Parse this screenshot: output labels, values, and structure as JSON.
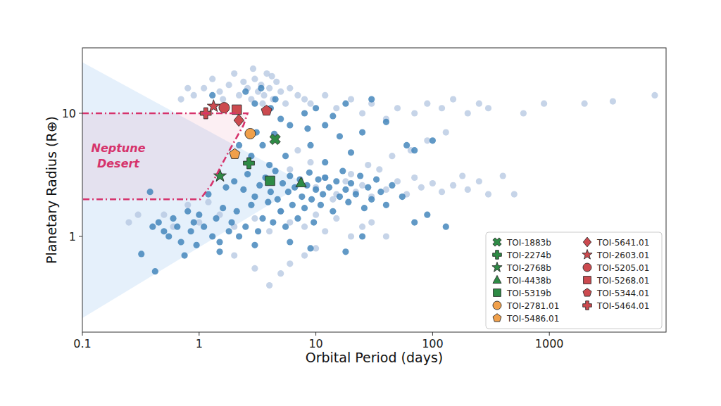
{
  "chart_data": {
    "type": "scatter",
    "x_label": "Orbital Period (days)",
    "y_label": "Planetary Radius (R⊕)",
    "annotation": "Neptune\nDesert",
    "log": true,
    "grid": false,
    "legend": "lower right",
    "xlim": [
      0.1,
      10000
    ],
    "ylim": [
      0.167,
      34
    ],
    "xticks": [
      0.1,
      1,
      10,
      100,
      1000
    ],
    "yticks": [
      1,
      10
    ],
    "wedge": {
      "color": "#dcebfa",
      "x": [
        0.1,
        8,
        0.1
      ],
      "y": [
        26,
        2.7,
        0.217
      ]
    },
    "desert": {
      "color": "#d6336c",
      "x": [
        0.1,
        2.6,
        2.4,
        1.94,
        1.53,
        1.28,
        1.02,
        0.1
      ],
      "y": [
        10,
        10,
        8,
        5.6,
        3.68,
        2.65,
        2.0,
        2.0
      ]
    },
    "series": [
      {
        "color": "#b3c6e0",
        "marker": "circle",
        "x": [
          1.1,
          1.3,
          1.5,
          1.8,
          2.0,
          2.2,
          2.4,
          2.6,
          2.8,
          3.0,
          3.2,
          3.4,
          3.6,
          3.8,
          4.0,
          4.3,
          4.6,
          5.0,
          5.5,
          6,
          7,
          8,
          9,
          3.5,
          2.9,
          4.2,
          1.6,
          0.8,
          0.9,
          0.7,
          12,
          15,
          20,
          25,
          30,
          40,
          50,
          70,
          90,
          120,
          150,
          200,
          250,
          300,
          600,
          900,
          2000,
          3500,
          8000,
          10,
          12,
          15,
          18,
          20,
          25,
          30,
          35,
          40,
          50,
          60,
          70,
          80,
          100,
          120,
          150,
          180,
          200,
          250,
          300,
          400,
          500,
          14,
          22,
          28,
          45,
          65,
          90,
          130,
          9,
          7,
          6,
          1.0,
          1.5,
          2,
          3,
          4,
          5,
          6,
          8,
          10,
          12,
          15,
          20,
          25,
          30,
          40,
          0.5,
          0.6,
          0.3,
          0.25,
          5,
          4,
          6,
          3,
          8,
          10,
          2,
          1.2,
          0.8
        ],
        "values": [
          16,
          19,
          15,
          17,
          21,
          14,
          18,
          16,
          13,
          19,
          15,
          17,
          14,
          21,
          16,
          13,
          18,
          15,
          12,
          16,
          14,
          13,
          12,
          12,
          23,
          20,
          13,
          16,
          14,
          13,
          14,
          11,
          13,
          10,
          12,
          9,
          11,
          10,
          12,
          11,
          13,
          10,
          12,
          11,
          10,
          12,
          12,
          12.5,
          14,
          2.5,
          3,
          2.2,
          2.8,
          3.2,
          2.6,
          2.1,
          3.5,
          2.4,
          2.8,
          2.2,
          3.0,
          2.5,
          2.7,
          2.3,
          2.6,
          3.1,
          2.4,
          2.8,
          2.2,
          3.1,
          2.2,
          2.0,
          2.3,
          3.8,
          4.5,
          5,
          6,
          7,
          4,
          5,
          3.5,
          1.3,
          1.5,
          1.2,
          1.4,
          1.1,
          1.6,
          1.3,
          1.2,
          1.5,
          1.1,
          1.4,
          1.0,
          1.2,
          1.3,
          1.0,
          1.5,
          1.2,
          1.5,
          1.3,
          0.5,
          0.4,
          0.6,
          0.55,
          0.7,
          0.8,
          0.7,
          1.9,
          1.8
        ]
      },
      {
        "color": "#3a80b8",
        "marker": "circle",
        "x": [
          0.32,
          0.42,
          0.38,
          0.4,
          0.45,
          0.5,
          0.55,
          0.6,
          0.65,
          0.7,
          0.75,
          0.8,
          0.85,
          0.9,
          0.95,
          1.0,
          1.1,
          1.2,
          1.3,
          1.4,
          1.5,
          1.6,
          1.7,
          1.8,
          1.9,
          2.0,
          2.1,
          2.2,
          2.4,
          2.5,
          2.6,
          2.8,
          3.0,
          3.2,
          3.3,
          3.5,
          3.7,
          3.9,
          4.1,
          4.3,
          4.5,
          4.7,
          5.0,
          5.2,
          5.5,
          5.8,
          6.0,
          6.3,
          6.6,
          7.0,
          7.3,
          7.6,
          8.0,
          8.4,
          8.8,
          9.2,
          9.6,
          10,
          10.5,
          11,
          11.5,
          12,
          13,
          14,
          15,
          16,
          17,
          18,
          19,
          20,
          22,
          24,
          26,
          28,
          30,
          33,
          36,
          40,
          45,
          55,
          70,
          90,
          130,
          3,
          6,
          9,
          18,
          25,
          1.5,
          1.3,
          2.5,
          3.0,
          3.4,
          4.1,
          4.5,
          5,
          6,
          8,
          10,
          14,
          18,
          30,
          40,
          70,
          100,
          2.2,
          2.8,
          3.5,
          4,
          5.5,
          9,
          12,
          16,
          20,
          25,
          60,
          3.1,
          4.4,
          8.5,
          12
        ],
        "values": [
          0.72,
          0.52,
          2.3,
          1.2,
          1.3,
          1.1,
          1.0,
          1.4,
          1.2,
          0.9,
          0.7,
          1.6,
          1.1,
          1.3,
          0.85,
          1.5,
          1.2,
          2.2,
          1.0,
          1.4,
          0.9,
          1.7,
          2.5,
          1.1,
          1.3,
          2.8,
          1.6,
          1.0,
          2.4,
          1.2,
          3.2,
          1.8,
          2.1,
          1.1,
          2.6,
          1.4,
          3.0,
          1.9,
          2.3,
          1.3,
          3.4,
          2.0,
          1.6,
          2.7,
          1.2,
          2.3,
          3.1,
          1.8,
          2.5,
          1.4,
          2.9,
          2.1,
          1.7,
          2.6,
          3.3,
          2.0,
          1.3,
          2.4,
          2.9,
          1.8,
          2.2,
          3.0,
          2.5,
          1.6,
          2.8,
          2.1,
          3.4,
          2.4,
          1.9,
          2.7,
          2.2,
          3.1,
          1.7,
          2.5,
          2.0,
          2.9,
          2.3,
          1.8,
          2.6,
          2.1,
          1.3,
          1.5,
          1.2,
          0.85,
          0.9,
          0.8,
          0.75,
          1.0,
          0.75,
          14,
          15,
          12,
          16,
          11,
          13,
          9,
          8,
          10,
          11,
          9.5,
          12,
          13,
          8.5,
          5,
          6,
          5.5,
          4.5,
          5.5,
          3.8,
          4.5,
          5.5,
          4,
          6.5,
          4.8,
          7,
          5.5,
          7,
          6.8,
          7.5,
          8
        ]
      },
      {
        "name": "TOI-1883b",
        "color": "#2e8b45",
        "marker": "x",
        "x": [
          4.47
        ],
        "values": [
          6.15
        ]
      },
      {
        "name": "TOI-2274b",
        "color": "#2e8b45",
        "marker": "plus",
        "x": [
          2.67
        ],
        "values": [
          3.93
        ]
      },
      {
        "name": "TOI-2768b",
        "color": "#2e8b45",
        "marker": "star",
        "x": [
          1.51
        ],
        "values": [
          3.1
        ]
      },
      {
        "name": "TOI-4438b",
        "color": "#2e8b45",
        "marker": "triangle",
        "x": [
          7.47
        ],
        "values": [
          2.72
        ]
      },
      {
        "name": "TOI-5319b",
        "color": "#2e8b45",
        "marker": "square",
        "x": [
          4.05
        ],
        "values": [
          2.83
        ]
      },
      {
        "name": "TOI-2781.01",
        "color": "#f0a04b",
        "marker": "circle",
        "x": [
          2.74
        ],
        "values": [
          6.83
        ]
      },
      {
        "name": "TOI-5486.01",
        "color": "#f0a04b",
        "marker": "pentagon",
        "x": [
          2.02
        ],
        "values": [
          4.66
        ]
      },
      {
        "name": "TOI-5641.01",
        "color": "#cc4a4f",
        "marker": "diamond",
        "x": [
          2.19
        ],
        "values": [
          8.77
        ]
      },
      {
        "name": "TOI-2603.01",
        "color": "#cc4a4f",
        "marker": "star",
        "x": [
          1.33
        ],
        "values": [
          11.4
        ]
      },
      {
        "name": "TOI-5205.01",
        "color": "#cc4a4f",
        "marker": "circle",
        "x": [
          1.64
        ],
        "values": [
          11.1
        ]
      },
      {
        "name": "TOI-5268.01",
        "color": "#cc4a4f",
        "marker": "square",
        "x": [
          2.1
        ],
        "values": [
          10.7
        ]
      },
      {
        "name": "TOI-5344.01",
        "color": "#cc4a4f",
        "marker": "pentagon",
        "x": [
          3.78
        ],
        "values": [
          10.5
        ]
      },
      {
        "name": "TOI-5464.01",
        "color": "#cc4a4f",
        "marker": "plus",
        "x": [
          1.14
        ],
        "values": [
          10.0
        ]
      }
    ]
  }
}
